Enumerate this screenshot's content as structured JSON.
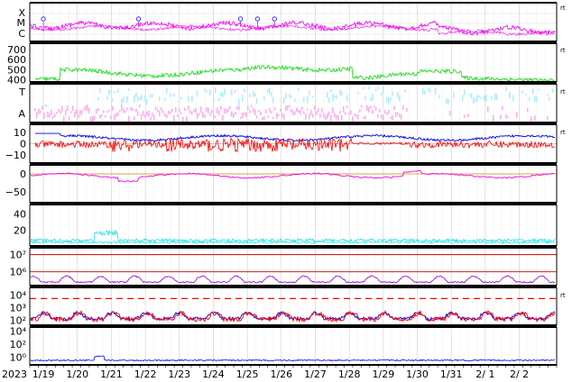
{
  "chart_data": {
    "type": "line",
    "x_axis": {
      "year_label": "2023",
      "ticks": [
        "1/19",
        "1/20",
        "1/21",
        "1/22",
        "1/23",
        "1/24",
        "1/25",
        "1/26",
        "1/27",
        "1/28",
        "1/29",
        "1/30",
        "1/31",
        "2/ 1",
        "2/ 2"
      ],
      "range": [
        "2023-01-18 16:00",
        "2023-02-02 20:00"
      ]
    },
    "colors": {
      "magenta": "#ee00ee",
      "green": "#00dd00",
      "light_blue": "#aaeeff",
      "pink": "#ffaaee",
      "blue": "#0000ee",
      "red": "#ff0000",
      "cyan": "#00dddd",
      "purple": "#9900cc",
      "dark_red": "#cc0000"
    },
    "panels": [
      {
        "id": "xray",
        "y_labels": [
          "X",
          "M",
          "C"
        ],
        "right_label": "rt",
        "markers_day": [
          0.4,
          3.2,
          6.2,
          6.7,
          7.2
        ]
      },
      {
        "id": "speed",
        "y_ticks": [
          "700",
          "600",
          "500",
          "400"
        ],
        "ylim": [
          380,
          760
        ],
        "series_color": "#00dd00",
        "right_label": "rt"
      },
      {
        "id": "ta",
        "y_labels": [
          "T",
          "A"
        ],
        "right_label": "rt"
      },
      {
        "id": "bz",
        "y_ticks": [
          "10",
          "0",
          "−10"
        ],
        "ylim": [
          -17,
          17
        ],
        "right_label": "rt"
      },
      {
        "id": "dst",
        "y_ticks": [
          "0",
          "−50"
        ],
        "ylim": [
          -80,
          25
        ]
      },
      {
        "id": "density",
        "y_ticks": [
          "40",
          "20"
        ],
        "ylim": [
          0,
          52
        ]
      },
      {
        "id": "electron",
        "y_ticks": [
          "10⁷",
          "10⁶"
        ],
        "lines": [
          10000000.0,
          1000000.0
        ],
        "ylim_log": [
          5.2,
          7.4
        ]
      },
      {
        "id": "proton",
        "y_ticks": [
          "10⁴",
          "10³",
          "10²"
        ],
        "threshold": 10000.0,
        "ylim_log": [
          1.6,
          4.6
        ],
        "right_label": "rt"
      },
      {
        "id": "high_energy",
        "y_ticks": [
          "10⁴",
          "10²",
          "10⁰"
        ],
        "ylim_log": [
          -1.2,
          4.6
        ]
      }
    ]
  }
}
